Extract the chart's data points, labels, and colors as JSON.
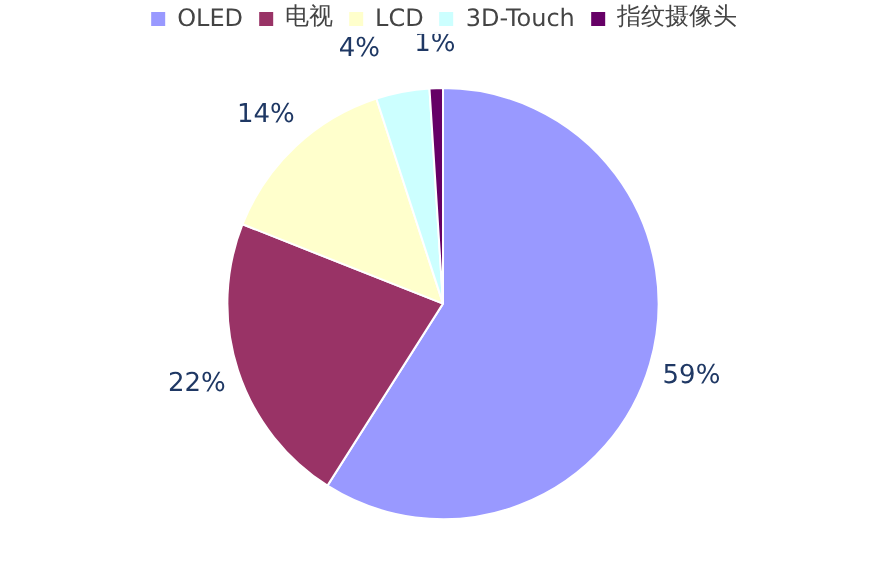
{
  "chart_data": {
    "type": "pie",
    "categories": [
      "OLED",
      "电视",
      "LCD",
      "3D-Touch",
      "指纹摄像头"
    ],
    "values": [
      59,
      22,
      14,
      4,
      1
    ],
    "colors": [
      "#9999ff",
      "#993366",
      "#ffffcc",
      "#ccffff",
      "#660066"
    ],
    "value_labels": [
      "59%",
      "22%",
      "14%",
      "4%",
      "1%"
    ],
    "legend": "top"
  }
}
